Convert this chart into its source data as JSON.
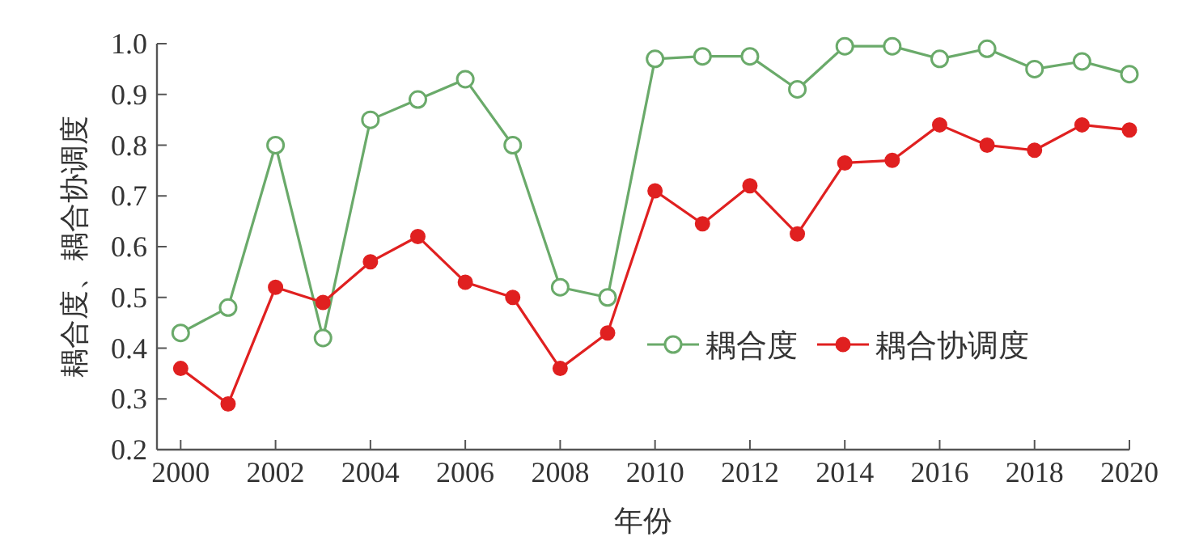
{
  "chart_data": {
    "type": "line",
    "xlabel": "年份",
    "ylabel": "耦合度、耦合协调度",
    "x": [
      2000,
      2001,
      2002,
      2003,
      2004,
      2005,
      2006,
      2007,
      2008,
      2009,
      2010,
      2011,
      2012,
      2013,
      2014,
      2015,
      2016,
      2017,
      2018,
      2019,
      2020
    ],
    "series": [
      {
        "name": "耦合度",
        "color": "#6aaa6a",
        "marker": "circle",
        "values": [
          0.43,
          0.48,
          0.8,
          0.42,
          0.85,
          0.89,
          0.93,
          0.8,
          0.52,
          0.5,
          0.97,
          0.975,
          0.975,
          0.91,
          0.995,
          0.995,
          0.97,
          0.99,
          0.95,
          0.965,
          0.94
        ]
      },
      {
        "name": "耦合协调度",
        "color": "#e02020",
        "marker": "circle",
        "values": [
          0.36,
          0.29,
          0.52,
          0.49,
          0.57,
          0.62,
          0.53,
          0.5,
          0.36,
          0.43,
          0.71,
          0.645,
          0.72,
          0.625,
          0.765,
          0.77,
          0.84,
          0.8,
          0.79,
          0.84,
          0.83
        ]
      }
    ],
    "xlim": [
      1999.5,
      2020
    ],
    "ylim": [
      0.2,
      1.0
    ],
    "xticks": [
      2000,
      2002,
      2004,
      2006,
      2008,
      2010,
      2012,
      2014,
      2016,
      2018,
      2020
    ],
    "yticks": [
      {
        "value": 0.2,
        "label": "0.2"
      },
      {
        "value": 0.3,
        "label": "0.3"
      },
      {
        "value": 0.4,
        "label": "0.4"
      },
      {
        "value": 0.5,
        "label": "0.5"
      },
      {
        "value": 0.6,
        "label": "0.6"
      },
      {
        "value": 0.7,
        "label": "0.7"
      },
      {
        "value": 0.8,
        "label": "0.8"
      },
      {
        "value": 0.9,
        "label": "0.9"
      },
      {
        "value": 1.0,
        "label": "1.0"
      }
    ],
    "legend": "right",
    "grid": false
  }
}
